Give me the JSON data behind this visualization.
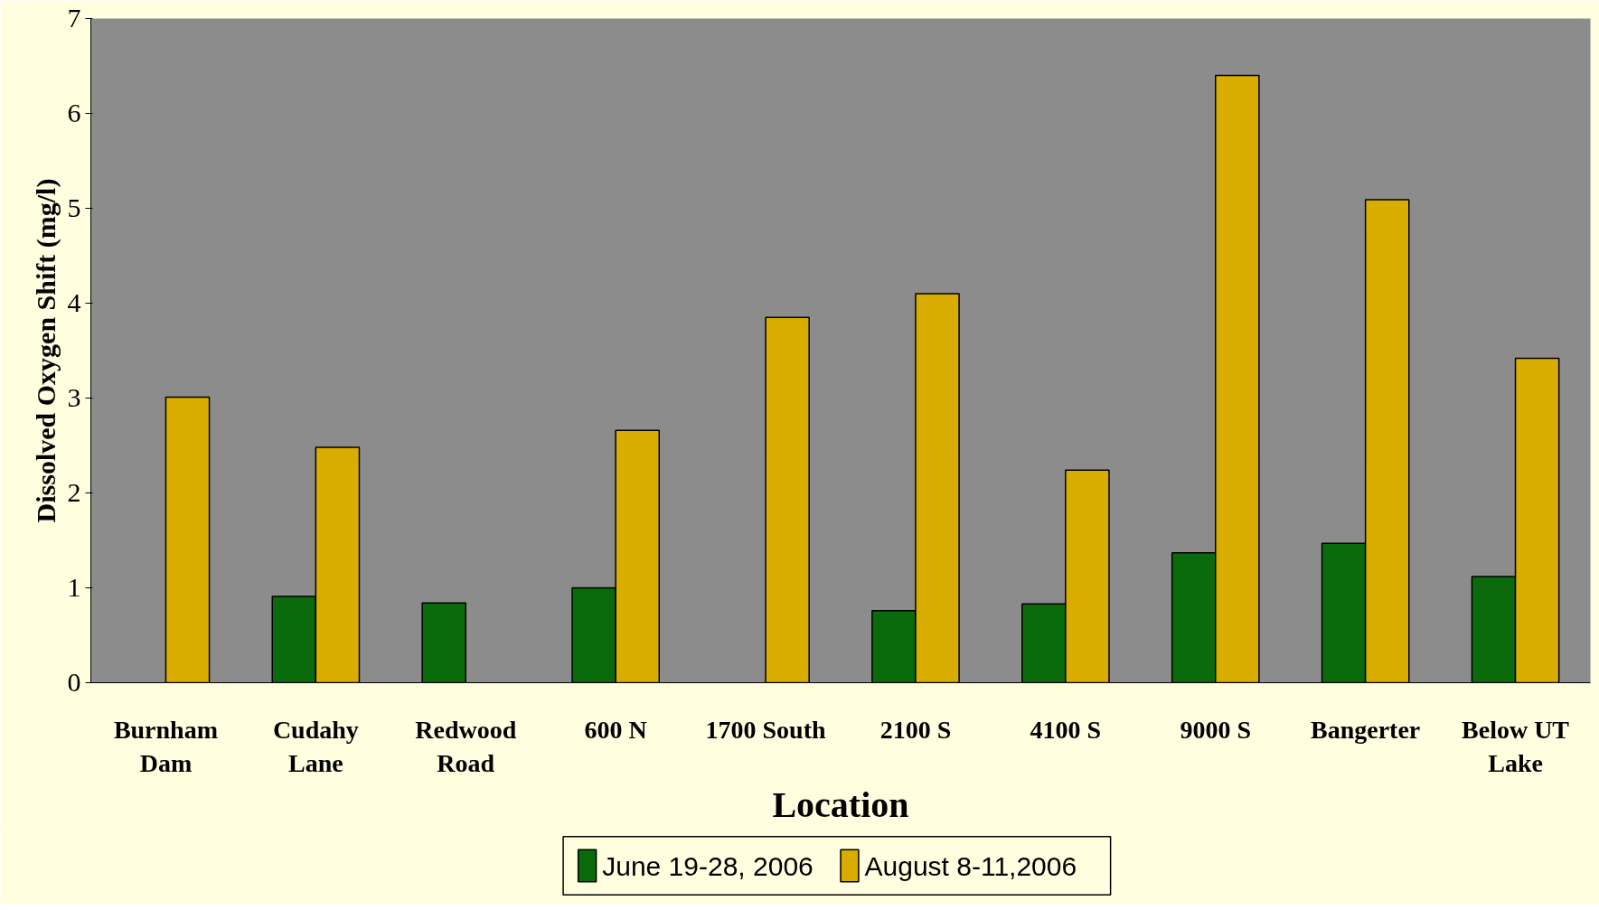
{
  "chart_data": {
    "type": "bar",
    "xlabel": "Location",
    "ylabel": "Dissolved Oxygen Shift (mg/l)",
    "categories": [
      "Burnham\nDam",
      "Cudahy\nLane",
      "Redwood\nRoad",
      "600 N",
      "1700 South",
      "2100 S",
      "4100 S",
      "9000 S",
      "Bangerter",
      "Below UT\nLake"
    ],
    "series": [
      {
        "name": "June 19-28, 2006",
        "color": "#0b6a0b",
        "values": [
          null,
          0.91,
          0.84,
          1.0,
          null,
          0.76,
          0.83,
          1.37,
          1.47,
          1.12
        ]
      },
      {
        "name": "August 8-11,2006",
        "color": "#d9ad00",
        "values": [
          3.01,
          2.48,
          null,
          2.66,
          3.85,
          4.1,
          2.24,
          6.4,
          5.09,
          3.42
        ]
      }
    ],
    "ylim": [
      0,
      7
    ],
    "yticks": [
      0,
      1,
      2,
      3,
      4,
      5,
      6,
      7
    ],
    "grid": false,
    "legend": "bottom"
  }
}
